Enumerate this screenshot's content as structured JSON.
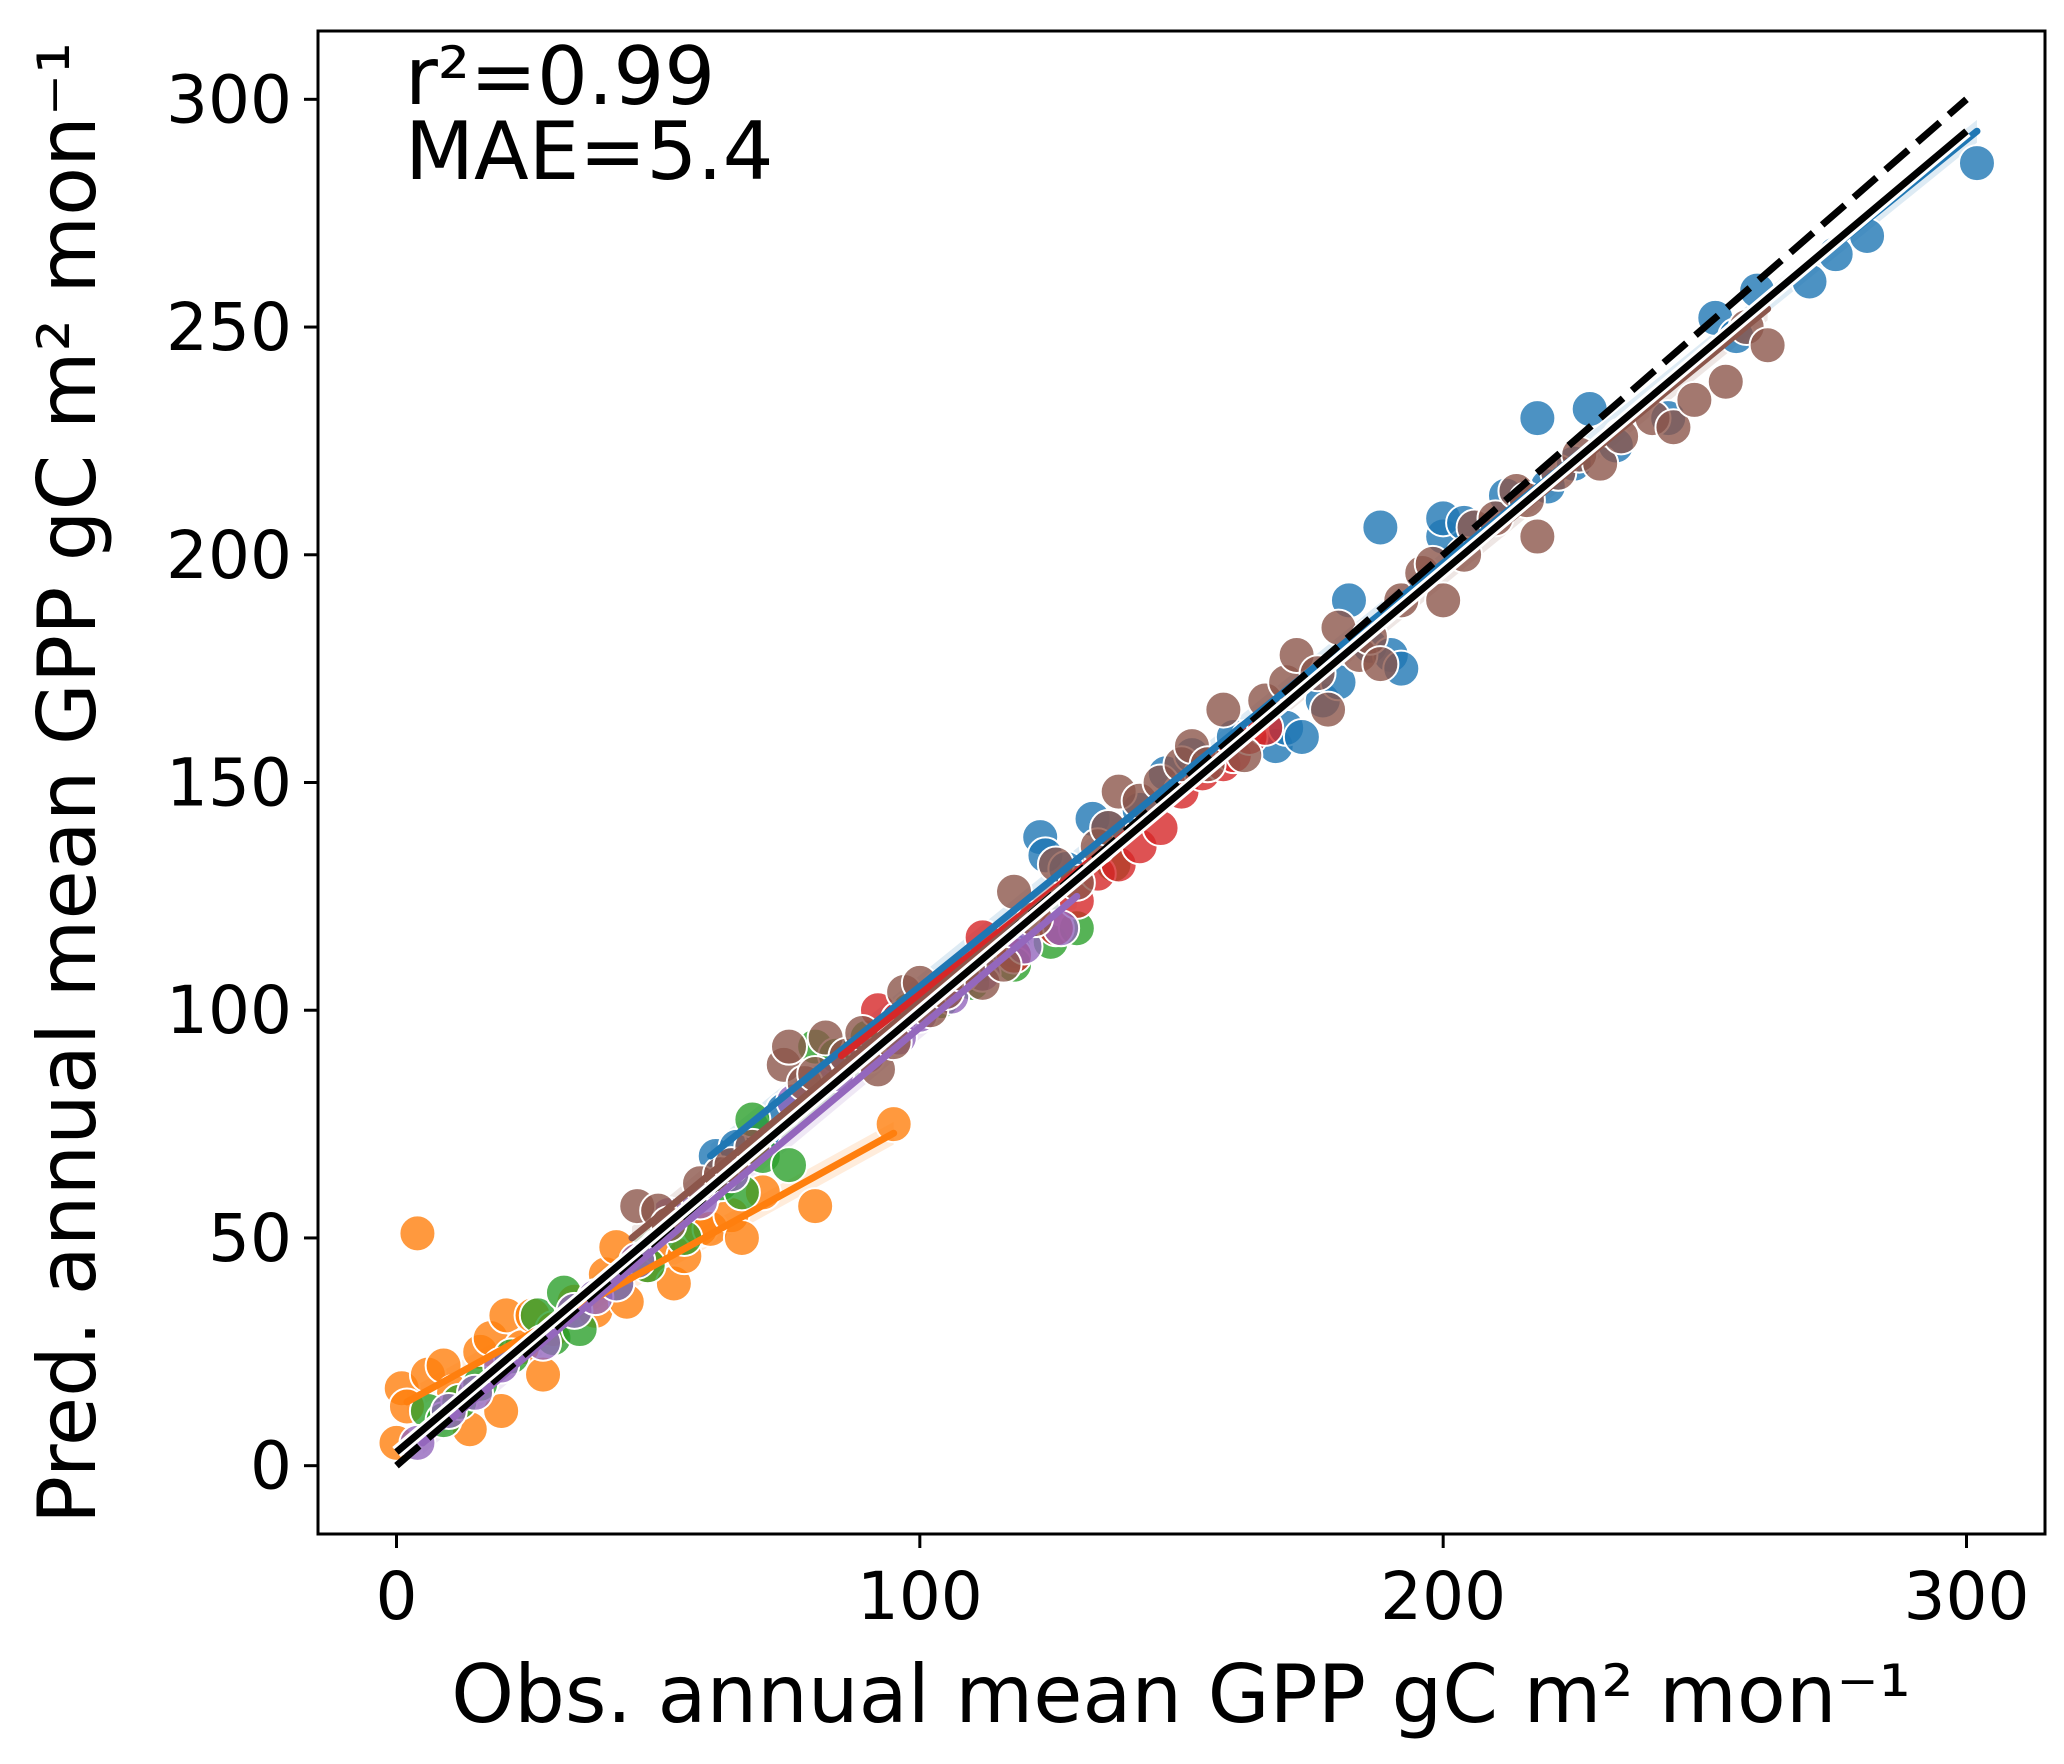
{
  "chart_data": {
    "type": "scatter",
    "xlabel": "Obs. annual mean GPP gC m² mon⁻¹",
    "ylabel": "Pred. annual mean GPP gC m² mon⁻¹",
    "xlim": [
      -15,
      315
    ],
    "ylim": [
      -15,
      315
    ],
    "xticks": [
      0,
      100,
      200,
      300
    ],
    "yticks": [
      0,
      50,
      100,
      150,
      200,
      250,
      300
    ],
    "annotations": [
      "r²=0.99",
      "MAE=5.4"
    ],
    "grid": false,
    "legend": "none",
    "one_to_one_line": {
      "x": [
        0,
        300
      ],
      "y": [
        0,
        300
      ],
      "style": "dashed",
      "color": "#000000"
    },
    "overall_fit": {
      "x": [
        0,
        300
      ],
      "y": [
        3,
        293
      ],
      "color": "#000000"
    },
    "series": [
      {
        "color": "#1f77b4",
        "fit": {
          "x": [
            60,
            302
          ],
          "y": [
            68,
            293
          ]
        },
        "points": [
          [
            61,
            68
          ],
          [
            65,
            70
          ],
          [
            70,
            73
          ],
          [
            74,
            78
          ],
          [
            85,
            90
          ],
          [
            95,
            96
          ],
          [
            100,
            101
          ],
          [
            103,
            103
          ],
          [
            108,
            107
          ],
          [
            112,
            110
          ],
          [
            118,
            113
          ],
          [
            123,
            138
          ],
          [
            124,
            134
          ],
          [
            128,
            131
          ],
          [
            133,
            142
          ],
          [
            136,
            140
          ],
          [
            142,
            144
          ],
          [
            147,
            152
          ],
          [
            152,
            156
          ],
          [
            160,
            160
          ],
          [
            168,
            158
          ],
          [
            170,
            162
          ],
          [
            173,
            160
          ],
          [
            177,
            168
          ],
          [
            180,
            172
          ],
          [
            182,
            190
          ],
          [
            186,
            180
          ],
          [
            188,
            206
          ],
          [
            190,
            178
          ],
          [
            192,
            175
          ],
          [
            200,
            204
          ],
          [
            200,
            208
          ],
          [
            204,
            207
          ],
          [
            212,
            213
          ],
          [
            218,
            230
          ],
          [
            220,
            215
          ],
          [
            225,
            220
          ],
          [
            228,
            232
          ],
          [
            233,
            224
          ],
          [
            243,
            230
          ],
          [
            252,
            252
          ],
          [
            256,
            248
          ],
          [
            260,
            258
          ],
          [
            270,
            260
          ],
          [
            275,
            266
          ],
          [
            281,
            270
          ],
          [
            302,
            286
          ]
        ]
      },
      {
        "color": "#ff7f0e",
        "fit": {
          "x": [
            2,
            95
          ],
          "y": [
            14,
            73
          ]
        },
        "points": [
          [
            0,
            5
          ],
          [
            1,
            17
          ],
          [
            2,
            13
          ],
          [
            4,
            51
          ],
          [
            6,
            20
          ],
          [
            9,
            22
          ],
          [
            11,
            16
          ],
          [
            14,
            8
          ],
          [
            16,
            25
          ],
          [
            18,
            28
          ],
          [
            20,
            12
          ],
          [
            21,
            33
          ],
          [
            24,
            26
          ],
          [
            26,
            33
          ],
          [
            28,
            20
          ],
          [
            30,
            30
          ],
          [
            34,
            36
          ],
          [
            38,
            34
          ],
          [
            40,
            42
          ],
          [
            42,
            48
          ],
          [
            44,
            36
          ],
          [
            48,
            44
          ],
          [
            50,
            48
          ],
          [
            53,
            40
          ],
          [
            55,
            46
          ],
          [
            58,
            52
          ],
          [
            60,
            52
          ],
          [
            64,
            55
          ],
          [
            66,
            50
          ],
          [
            70,
            60
          ],
          [
            80,
            57
          ],
          [
            95,
            75
          ]
        ]
      },
      {
        "color": "#2ca02c",
        "fit": {
          "x": [
            5,
            130
          ],
          "y": [
            8,
            128
          ]
        },
        "points": [
          [
            6,
            12
          ],
          [
            9,
            10
          ],
          [
            12,
            14
          ],
          [
            16,
            18
          ],
          [
            22,
            24
          ],
          [
            27,
            33
          ],
          [
            30,
            28
          ],
          [
            32,
            38
          ],
          [
            35,
            30
          ],
          [
            42,
            40
          ],
          [
            48,
            44
          ],
          [
            55,
            50
          ],
          [
            62,
            62
          ],
          [
            66,
            60
          ],
          [
            68,
            76
          ],
          [
            70,
            68
          ],
          [
            75,
            66
          ],
          [
            80,
            92
          ],
          [
            84,
            90
          ],
          [
            90,
            94
          ],
          [
            98,
            100
          ],
          [
            104,
            102
          ],
          [
            110,
            106
          ],
          [
            118,
            110
          ],
          [
            125,
            115
          ],
          [
            130,
            118
          ],
          [
            137,
            132
          ]
        ]
      },
      {
        "color": "#d62728",
        "fit": {
          "x": [
            85,
            165
          ],
          "y": [
            90,
            162
          ]
        },
        "points": [
          [
            92,
            100
          ],
          [
            96,
            98
          ],
          [
            104,
            105
          ],
          [
            112,
            116
          ],
          [
            118,
            112
          ],
          [
            126,
            118
          ],
          [
            130,
            124
          ],
          [
            134,
            130
          ],
          [
            138,
            132
          ],
          [
            142,
            136
          ],
          [
            146,
            140
          ],
          [
            150,
            148
          ],
          [
            154,
            152
          ],
          [
            158,
            154
          ],
          [
            160,
            156
          ],
          [
            163,
            160
          ],
          [
            166,
            162
          ]
        ]
      },
      {
        "color": "#9467bd",
        "fit": {
          "x": [
            5,
            130
          ],
          "y": [
            5,
            125
          ]
        },
        "points": [
          [
            4,
            5
          ],
          [
            10,
            12
          ],
          [
            15,
            16
          ],
          [
            20,
            22
          ],
          [
            28,
            27
          ],
          [
            34,
            34
          ],
          [
            38,
            37
          ],
          [
            42,
            40
          ],
          [
            46,
            45
          ],
          [
            52,
            55
          ],
          [
            58,
            58
          ],
          [
            64,
            64
          ],
          [
            76,
            80
          ],
          [
            84,
            86
          ],
          [
            90,
            90
          ],
          [
            96,
            94
          ],
          [
            100,
            99
          ],
          [
            106,
            103
          ],
          [
            112,
            108
          ],
          [
            120,
            114
          ],
          [
            127,
            118
          ]
        ]
      },
      {
        "color": "#8c564b",
        "fit": {
          "x": [
            45,
            262
          ],
          "y": [
            50,
            254
          ]
        },
        "points": [
          [
            46,
            57
          ],
          [
            50,
            56
          ],
          [
            52,
            53
          ],
          [
            58,
            62
          ],
          [
            62,
            64
          ],
          [
            64,
            66
          ],
          [
            68,
            70
          ],
          [
            74,
            88
          ],
          [
            75,
            92
          ],
          [
            78,
            84
          ],
          [
            80,
            86
          ],
          [
            82,
            94
          ],
          [
            86,
            90
          ],
          [
            89,
            95
          ],
          [
            92,
            87
          ],
          [
            95,
            93
          ],
          [
            97,
            104
          ],
          [
            100,
            106
          ],
          [
            102,
            100
          ],
          [
            105,
            104
          ],
          [
            108,
            108
          ],
          [
            112,
            106
          ],
          [
            116,
            110
          ],
          [
            118,
            126
          ],
          [
            122,
            120
          ],
          [
            126,
            132
          ],
          [
            130,
            128
          ],
          [
            134,
            136
          ],
          [
            136,
            140
          ],
          [
            138,
            148
          ],
          [
            142,
            146
          ],
          [
            146,
            150
          ],
          [
            150,
            154
          ],
          [
            152,
            158
          ],
          [
            155,
            154
          ],
          [
            158,
            166
          ],
          [
            162,
            156
          ],
          [
            166,
            168
          ],
          [
            170,
            172
          ],
          [
            172,
            178
          ],
          [
            176,
            174
          ],
          [
            178,
            166
          ],
          [
            180,
            184
          ],
          [
            184,
            178
          ],
          [
            186,
            182
          ],
          [
            188,
            176
          ],
          [
            192,
            190
          ],
          [
            196,
            196
          ],
          [
            198,
            198
          ],
          [
            200,
            190
          ],
          [
            204,
            200
          ],
          [
            206,
            206
          ],
          [
            210,
            208
          ],
          [
            214,
            214
          ],
          [
            216,
            212
          ],
          [
            218,
            204
          ],
          [
            222,
            218
          ],
          [
            226,
            222
          ],
          [
            230,
            220
          ],
          [
            234,
            226
          ],
          [
            240,
            230
          ],
          [
            244,
            228
          ],
          [
            248,
            234
          ],
          [
            254,
            238
          ],
          [
            258,
            250
          ],
          [
            262,
            246
          ]
        ]
      }
    ]
  }
}
